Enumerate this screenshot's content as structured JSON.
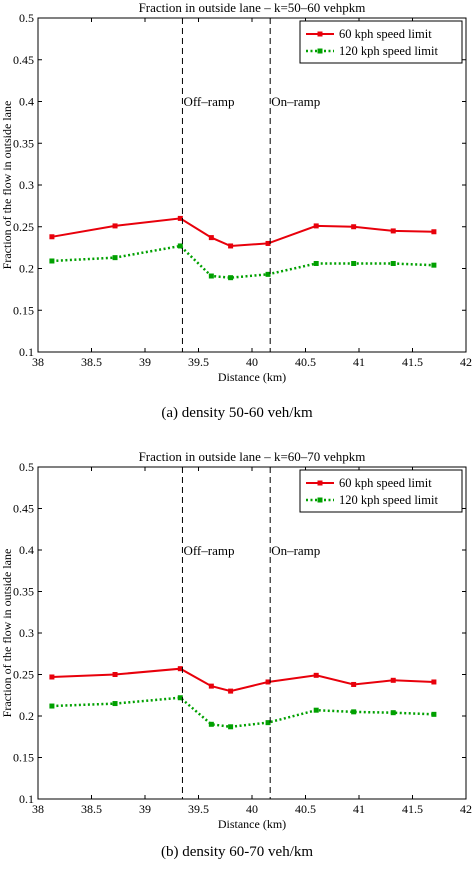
{
  "chart_data": [
    {
      "type": "line",
      "title": "Fraction in outside lane – k=50–60 vehpkm",
      "xlabel": "Distance (km)",
      "ylabel": "Fraction of the flow in outside lane",
      "xlim": [
        38,
        42
      ],
      "ylim": [
        0.1,
        0.5
      ],
      "xticks": [
        "38",
        "38.5",
        "39",
        "39.5",
        "40",
        "40.5",
        "41",
        "41.5",
        "42"
      ],
      "yticks": [
        "0.1",
        "0.15",
        "0.2",
        "0.25",
        "0.3",
        "0.35",
        "0.4",
        "0.45",
        "0.5"
      ],
      "grid": false,
      "legend_position": "top-right",
      "series": [
        {
          "name": "60 kph speed limit",
          "color": "#e8000b",
          "style": "solid",
          "marker": "square",
          "x": [
            38.13,
            38.72,
            39.33,
            39.62,
            39.8,
            40.15,
            40.6,
            40.95,
            41.32,
            41.7
          ],
          "y": [
            0.238,
            0.251,
            0.26,
            0.237,
            0.227,
            0.23,
            0.251,
            0.25,
            0.245,
            0.244
          ]
        },
        {
          "name": "120 kph speed limit",
          "color": "#00a000",
          "style": "dotted",
          "marker": "square",
          "x": [
            38.13,
            38.72,
            39.33,
            39.62,
            39.8,
            40.15,
            40.6,
            40.95,
            41.32,
            41.7
          ],
          "y": [
            0.209,
            0.213,
            0.227,
            0.191,
            0.189,
            0.193,
            0.206,
            0.206,
            0.206,
            0.204
          ]
        }
      ],
      "annotations": [
        {
          "label": "Off–ramp",
          "x": 39.35
        },
        {
          "label": "On–ramp",
          "x": 40.17
        }
      ],
      "caption": "(a)  density 50-60 veh/km"
    },
    {
      "type": "line",
      "title": "Fraction in outside lane – k=60–70 vehpkm",
      "xlabel": "Distance (km)",
      "ylabel": "Fraction of the flow in outside lane",
      "xlim": [
        38,
        42
      ],
      "ylim": [
        0.1,
        0.5
      ],
      "xticks": [
        "38",
        "38.5",
        "39",
        "39.5",
        "40",
        "40.5",
        "41",
        "41.5",
        "42"
      ],
      "yticks": [
        "0.1",
        "0.15",
        "0.2",
        "0.25",
        "0.3",
        "0.35",
        "0.4",
        "0.45",
        "0.5"
      ],
      "grid": false,
      "legend_position": "top-right",
      "series": [
        {
          "name": "60 kph speed limit",
          "color": "#e8000b",
          "style": "solid",
          "marker": "square",
          "x": [
            38.13,
            38.72,
            39.33,
            39.62,
            39.8,
            40.15,
            40.6,
            40.95,
            41.32,
            41.7
          ],
          "y": [
            0.247,
            0.25,
            0.257,
            0.236,
            0.23,
            0.241,
            0.249,
            0.238,
            0.243,
            0.241
          ]
        },
        {
          "name": "120 kph speed limit",
          "color": "#00a000",
          "style": "dotted",
          "marker": "square",
          "x": [
            38.13,
            38.72,
            39.33,
            39.62,
            39.8,
            40.15,
            40.6,
            40.95,
            41.32,
            41.7
          ],
          "y": [
            0.212,
            0.215,
            0.222,
            0.19,
            0.187,
            0.192,
            0.207,
            0.205,
            0.204,
            0.202
          ]
        }
      ],
      "annotations": [
        {
          "label": "Off–ramp",
          "x": 39.35
        },
        {
          "label": "On–ramp",
          "x": 40.17
        }
      ],
      "caption": "(b)  density 60-70 veh/km"
    }
  ]
}
